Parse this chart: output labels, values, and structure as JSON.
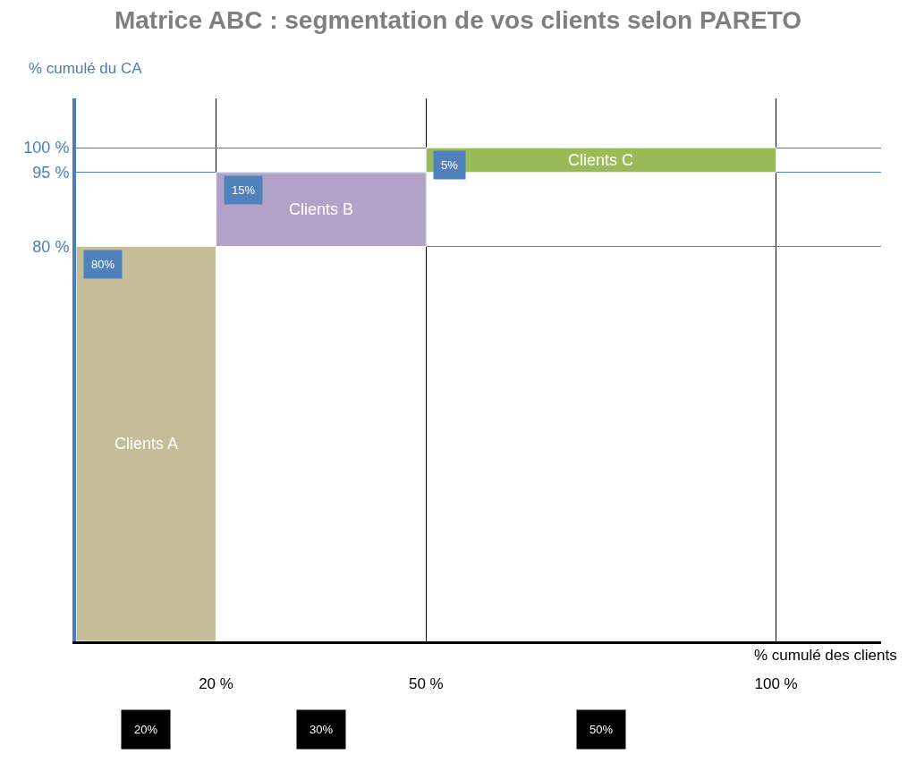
{
  "chart_data": {
    "type": "histogram",
    "title": "Matrice ABC : segmentation de vos clients selon PARETO",
    "xlabel": "% cumulé des clients",
    "ylabel": "% cumulé du CA",
    "bins": [
      0,
      20,
      50,
      100
    ],
    "values": [
      80,
      15,
      5
    ],
    "base": [
      0,
      80,
      95
    ],
    "categories": [
      "Clients A",
      "Clients B",
      "Clients C"
    ],
    "colors": [
      "#c4bd97",
      "#b3a2c7",
      "#9bbb59"
    ],
    "value_labels": [
      "80%",
      "15%",
      "5%"
    ],
    "xlim": [
      0,
      115
    ],
    "ylim": [
      0,
      110
    ],
    "xticks": [
      {
        "value": 20,
        "label": "20 %"
      },
      {
        "value": 50,
        "label": "50 %"
      },
      {
        "value": 100,
        "label": "100 %"
      }
    ],
    "yticks": [
      {
        "value": 80,
        "label": "80 %"
      },
      {
        "value": 95,
        "label": "95 %"
      },
      {
        "value": 100,
        "label": "100 %"
      }
    ],
    "grid": true,
    "annotations": [
      "20%",
      "30%",
      "50%"
    ]
  }
}
